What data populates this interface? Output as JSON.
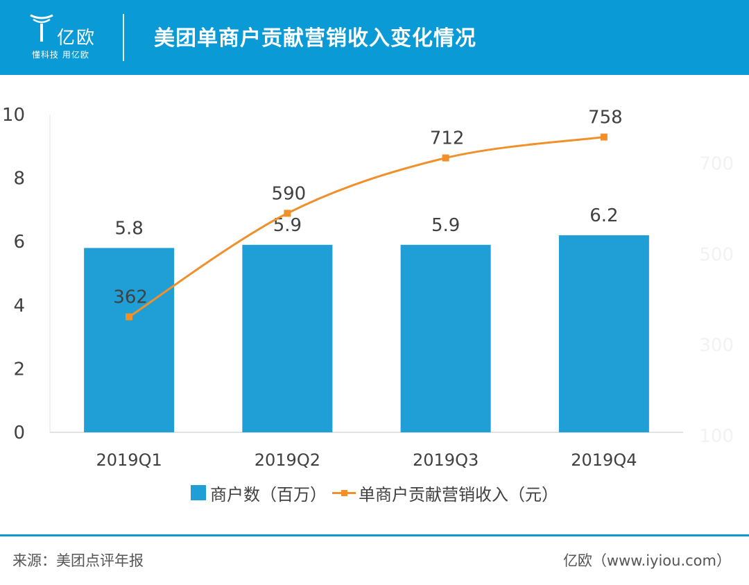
{
  "header": {
    "logo_name": "亿欧",
    "logo_slogan": "懂科技 用亿欧",
    "title": "美团单商户贡献营销收入变化情况"
  },
  "colors": {
    "header_bg": "#0a9ad6",
    "bar": "#1f9fd6",
    "line": "#f0902a"
  },
  "chart_data": {
    "type": "bar",
    "categories": [
      "2019Q1",
      "2019Q2",
      "2019Q3",
      "2019Q4"
    ],
    "series": [
      {
        "name": "商户数（百万）",
        "type": "bar",
        "axis": "left",
        "values": [
          5.8,
          5.9,
          5.9,
          6.2
        ],
        "labels": [
          "5.8",
          "5.9",
          "5.9",
          "6.2"
        ]
      },
      {
        "name": "单商户贡献营销收入（元）",
        "type": "line",
        "axis": "right",
        "values": [
          362,
          590,
          712,
          758
        ],
        "labels": [
          "362",
          "590",
          "712",
          "758"
        ]
      }
    ],
    "y_left": {
      "min": 0,
      "max": 10,
      "ticks": [
        "0",
        "2",
        "4",
        "6",
        "8",
        "10"
      ]
    },
    "y_right": {
      "min": 100,
      "max": 800,
      "ticks": [
        "100",
        "300",
        "500",
        "700"
      ]
    },
    "legend_position": "bottom",
    "grid": false
  },
  "footer": {
    "source": "来源：美团点评年报",
    "credit": "亿欧（www.iyiou.com）"
  }
}
